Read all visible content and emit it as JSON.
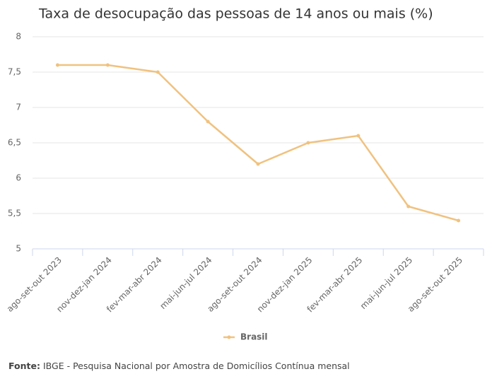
{
  "chart_data": {
    "type": "line",
    "title": "Taxa de desocupação das pessoas de 14 anos ou mais (%)",
    "categories": [
      "ago-set-out 2023",
      "nov-dez-jan 2024",
      "fev-mar-abr 2024",
      "mai-jun-jul 2024",
      "ago-set-out 2024",
      "nov-dez-jan 2025",
      "fev-mar-abr 2025",
      "mai-jun-jul 2025",
      "ago-set-out 2025"
    ],
    "series": [
      {
        "name": "Brasil",
        "color": "#f0c27f",
        "values": [
          7.6,
          7.6,
          7.5,
          6.8,
          6.2,
          6.5,
          6.6,
          5.6,
          5.4
        ]
      }
    ],
    "ylim": [
      5,
      8
    ],
    "yticks": [
      5,
      {
        "value": 5.5,
        "label": "5,5"
      },
      6,
      {
        "value": 6.5,
        "label": "6,5"
      },
      7,
      {
        "value": 7.5,
        "label": "7,5"
      },
      8
    ],
    "grid": true,
    "legend": "bottom",
    "source_label": "Fonte:",
    "source": "IBGE - Pesquisa Nacional por Amostra de Domicílios Contínua mensal"
  }
}
